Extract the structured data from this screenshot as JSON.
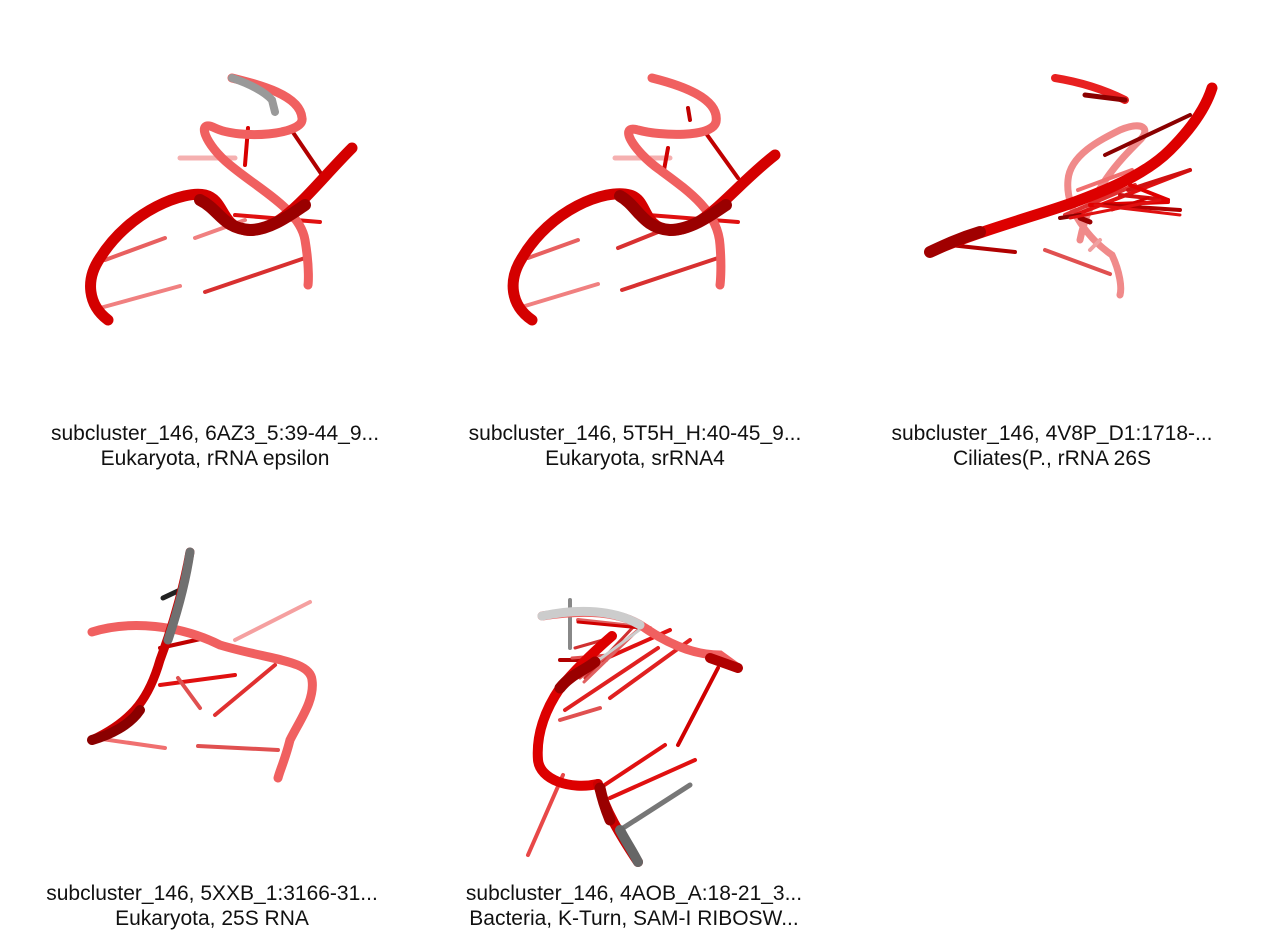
{
  "panels": [
    {
      "line1": "subcluster_146, 6AZ3_5:39-44_9...",
      "line2": "Eukaryota, rRNA epsilon"
    },
    {
      "line1": "subcluster_146, 5T5H_H:40-45_9...",
      "line2": "Eukaryota, srRNA4"
    },
    {
      "line1": "subcluster_146, 4V8P_D1:1718-...",
      "line2": "Ciliates(P., rRNA 26S"
    },
    {
      "line1": "subcluster_146, 5XXB_1:3166-31...",
      "line2": "Eukaryota, 25S RNA"
    },
    {
      "line1": "subcluster_146, 4AOB_A:18-21_3...",
      "line2": "Bacteria, K-Turn, SAM-I RIBOSW..."
    }
  ],
  "colors": {
    "red": "#e8121a",
    "dark_red": "#8e0000",
    "light_red": "#f07a7a",
    "grey": "#808080",
    "light_grey": "#cccccc"
  }
}
